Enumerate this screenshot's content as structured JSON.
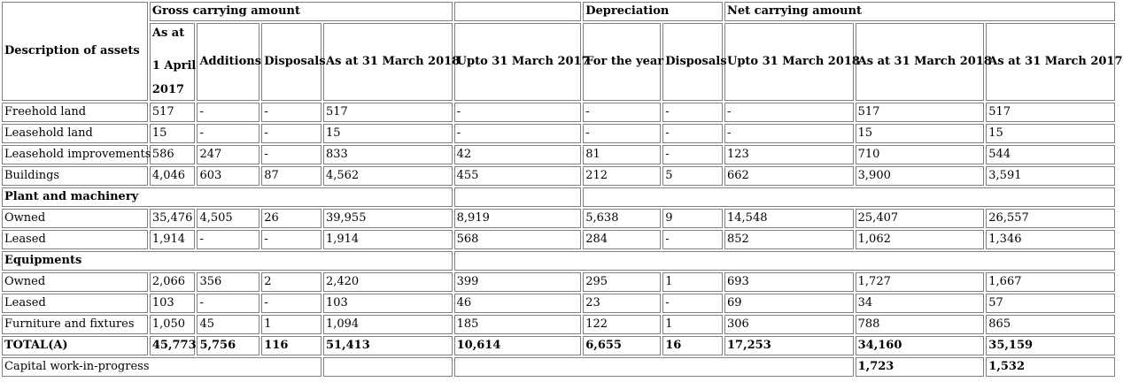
{
  "header": {
    "desc": "Description of assets",
    "gross": "Gross carrying amount",
    "depreciation": "Depreciation",
    "net": "Net carrying amount",
    "asat_1": "As at",
    "asat_2": "1 April",
    "asat_3": "2017",
    "additions": "Additions",
    "disposals": "Disposals",
    "gross_31mar2018": "As at 31 March 2018",
    "upto_31mar2017": "Upto 31 March 2017",
    "for_the_year": "For the year",
    "dep_disposals": "Disposals",
    "upto_31mar2018": "Upto 31 March 2018",
    "net_31mar2018": "As at 31 March 2018",
    "net_31mar2017": "As at 31 March 2017"
  },
  "rows": [
    {
      "label": "Freehold land",
      "c": [
        "517",
        "-",
        "-",
        "517",
        "-",
        "-",
        "-",
        "-",
        "517",
        "517"
      ]
    },
    {
      "label": "Leasehold land",
      "c": [
        "15",
        "-",
        "-",
        "15",
        "-",
        "-",
        "-",
        "-",
        "15",
        "15"
      ]
    },
    {
      "label": "Leasehold improvements",
      "c": [
        "586",
        "247",
        "-",
        "833",
        "42",
        "81",
        "-",
        "123",
        "710",
        "544"
      ]
    },
    {
      "label": "Buildings",
      "c": [
        "4,046",
        "603",
        "87",
        "4,562",
        "455",
        "212",
        "5",
        "662",
        "3,900",
        "3,591"
      ]
    },
    {
      "label": "Plant and machinery"
    },
    {
      "label": "Owned",
      "c": [
        "35,476",
        "4,505",
        "26",
        "39,955",
        "8,919",
        "5,638",
        "9",
        "14,548",
        "25,407",
        "26,557"
      ]
    },
    {
      "label": "Leased",
      "c": [
        "1,914",
        "-",
        "-",
        "1,914",
        "568",
        "284",
        "-",
        "852",
        "1,062",
        "1,346"
      ]
    },
    {
      "label": "Equipments"
    },
    {
      "label": "Owned",
      "c": [
        "2,066",
        "356",
        "2",
        "2,420",
        "399",
        "295",
        "1",
        "693",
        "1,727",
        "1,667"
      ]
    },
    {
      "label": "Leased",
      "c": [
        "103",
        "-",
        "-",
        "103",
        "46",
        "23",
        "-",
        "69",
        "34",
        "57"
      ]
    },
    {
      "label": "Furniture and fixtures",
      "c": [
        "1,050",
        "45",
        "1",
        "1,094",
        "185",
        "122",
        "1",
        "306",
        "788",
        "865"
      ]
    },
    {
      "label": "TOTAL(A)",
      "c": [
        "45,773",
        "5,756",
        "116",
        "51,413",
        "10,614",
        "6,655",
        "16",
        "17,253",
        "34,160",
        "35,159"
      ]
    },
    {
      "label": "Capital work-in-progress",
      "c": [
        "1,723",
        "1,532"
      ]
    }
  ]
}
